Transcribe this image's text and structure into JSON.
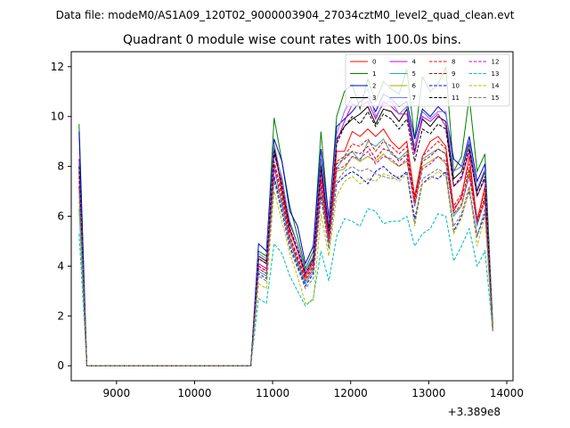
{
  "header": {
    "file_text": "Data file: modeM0/AS1A09_120T02_9000003904_27034cztM0_level2_quad_clean.evt"
  },
  "chart_data": {
    "type": "line",
    "title": "Quadrant 0 module wise count rates with 100.0s bins.",
    "xlabel": "",
    "ylabel": "",
    "x_offset_label": "+3.389e8",
    "xlim": [
      8420,
      14080
    ],
    "ylim": [
      -0.6,
      12.6
    ],
    "xticks": [
      9000,
      10000,
      11000,
      12000,
      13000,
      14000
    ],
    "yticks": [
      0,
      2,
      4,
      6,
      8,
      10,
      12
    ],
    "legend_position": "top-right",
    "grid": false,
    "x": [
      8520,
      8620,
      8720,
      8820,
      8920,
      9020,
      9120,
      9220,
      9320,
      9420,
      9520,
      9620,
      9720,
      9820,
      9920,
      10020,
      10120,
      10220,
      10320,
      10420,
      10520,
      10620,
      10720,
      10820,
      10920,
      11020,
      11120,
      11220,
      11320,
      11420,
      11520,
      11620,
      11720,
      11820,
      11920,
      12020,
      12120,
      12220,
      12320,
      12420,
      12520,
      12620,
      12720,
      12820,
      12920,
      13020,
      13120,
      13220,
      13320,
      13420,
      13520,
      13620,
      13720,
      13820
    ],
    "series": [
      {
        "name": "0",
        "color": "#ff0000",
        "dash": "solid",
        "values": [
          8.3,
          0,
          0,
          0,
          0,
          0,
          0,
          0,
          0,
          0,
          0,
          0,
          0,
          0,
          0,
          0,
          0,
          0,
          0,
          0,
          0,
          0,
          0,
          4.3,
          4.1,
          8.8,
          7.0,
          5.4,
          4.6,
          3.6,
          4.1,
          7.9,
          5.0,
          8.6,
          8.6,
          9.4,
          9.2,
          9.5,
          9.2,
          9.5,
          9.0,
          8.7,
          9.0,
          6.8,
          8.4,
          9.0,
          9.2,
          8.8,
          6.2,
          6.8,
          8.4,
          5.8,
          7.2,
          1.5
        ]
      },
      {
        "name": "1",
        "color": "#008000",
        "dash": "solid",
        "values": [
          9.7,
          0,
          0,
          0,
          0,
          0,
          0,
          0,
          0,
          0,
          0,
          0,
          0,
          0,
          0,
          0,
          0,
          0,
          0,
          0,
          0,
          0,
          0,
          4.6,
          4.4,
          9.95,
          8.2,
          6.4,
          5.2,
          3.9,
          4.6,
          9.4,
          5.8,
          10.0,
          11.0,
          11.3,
          10.3,
          11.5,
          10.6,
          11.4,
          11.1,
          10.9,
          11.9,
          9.1,
          11.6,
          11.0,
          11.3,
          12.0,
          7.8,
          8.4,
          10.8,
          7.8,
          8.5,
          1.7
        ]
      },
      {
        "name": "2",
        "color": "#0000cc",
        "dash": "solid",
        "values": [
          9.4,
          0,
          0,
          0,
          0,
          0,
          0,
          0,
          0,
          0,
          0,
          0,
          0,
          0,
          0,
          0,
          0,
          0,
          0,
          0,
          0,
          0,
          0,
          4.9,
          4.6,
          9.1,
          8.2,
          6.2,
          5.6,
          4.1,
          4.8,
          8.7,
          5.9,
          9.6,
          9.9,
          10.2,
          10.6,
          10.8,
          10.2,
          10.9,
          10.7,
          10.4,
          10.6,
          9.1,
          10.3,
          10.0,
          10.4,
          10.1,
          8.3,
          8.0,
          9.2,
          7.4,
          8.1,
          1.6
        ]
      },
      {
        "name": "3",
        "color": "#000000",
        "dash": "solid",
        "values": [
          8.1,
          0,
          0,
          0,
          0,
          0,
          0,
          0,
          0,
          0,
          0,
          0,
          0,
          0,
          0,
          0,
          0,
          0,
          0,
          0,
          0,
          0,
          0,
          4.4,
          4.2,
          8.7,
          7.5,
          5.7,
          4.9,
          3.8,
          4.3,
          8.1,
          5.5,
          9.1,
          9.6,
          9.9,
          10.1,
          10.4,
          9.7,
          10.3,
          10.2,
          9.8,
          10.3,
          8.6,
          9.9,
          9.6,
          10.0,
          9.8,
          7.5,
          7.8,
          8.9,
          7.0,
          7.8,
          1.5
        ]
      },
      {
        "name": "4",
        "color": "#cc00cc",
        "dash": "solid",
        "values": [
          7.9,
          0,
          0,
          0,
          0,
          0,
          0,
          0,
          0,
          0,
          0,
          0,
          0,
          0,
          0,
          0,
          0,
          0,
          0,
          0,
          0,
          0,
          0,
          4.1,
          3.9,
          8.5,
          7.3,
          5.5,
          4.6,
          3.7,
          4.2,
          7.8,
          5.3,
          9.0,
          9.8,
          10.5,
          10.4,
          10.6,
          9.9,
          10.6,
          10.4,
          10.1,
          10.1,
          8.5,
          10.0,
          9.8,
          10.1,
          9.6,
          7.2,
          7.5,
          8.6,
          6.8,
          7.5,
          1.5
        ]
      },
      {
        "name": "5",
        "color": "#20b2aa",
        "dash": "solid",
        "values": [
          6.3,
          0,
          0,
          0,
          0,
          0,
          0,
          0,
          0,
          0,
          0,
          0,
          0,
          0,
          0,
          0,
          0,
          0,
          0,
          0,
          0,
          0,
          0,
          3.8,
          3.6,
          8.0,
          6.4,
          5.0,
          4.1,
          3.3,
          3.8,
          7.1,
          4.9,
          7.9,
          8.4,
          8.6,
          8.2,
          9.0,
          8.8,
          9.1,
          8.5,
          8.3,
          8.6,
          6.4,
          8.3,
          8.5,
          8.7,
          8.5,
          6.0,
          6.4,
          7.8,
          5.6,
          6.7,
          1.4
        ]
      },
      {
        "name": "6",
        "color": "#aaaa00",
        "dash": "solid",
        "values": [
          7.1,
          0,
          0,
          0,
          0,
          0,
          0,
          0,
          0,
          0,
          0,
          0,
          0,
          0,
          0,
          0,
          0,
          0,
          0,
          0,
          0,
          0,
          0,
          3.9,
          3.7,
          7.5,
          6.6,
          5.1,
          4.2,
          3.4,
          3.9,
          7.0,
          4.9,
          7.8,
          7.9,
          8.4,
          8.2,
          8.4,
          8.2,
          8.5,
          8.2,
          8.0,
          8.2,
          6.5,
          8.0,
          8.2,
          8.4,
          8.1,
          6.1,
          6.4,
          7.7,
          5.8,
          6.6,
          1.4
        ]
      },
      {
        "name": "7",
        "color": "#7777ee",
        "dash": "solid",
        "values": [
          8.2,
          0,
          0,
          0,
          0,
          0,
          0,
          0,
          0,
          0,
          0,
          0,
          0,
          0,
          0,
          0,
          0,
          0,
          0,
          0,
          0,
          0,
          0,
          4.5,
          4.3,
          8.9,
          7.4,
          5.8,
          4.9,
          3.8,
          4.4,
          8.3,
          5.7,
          9.3,
          10.2,
          10.8,
          10.7,
          11.1,
          10.0,
          10.5,
          10.6,
          10.1,
          10.4,
          8.8,
          10.2,
          9.9,
          10.2,
          10.2,
          7.8,
          8.0,
          9.0,
          7.1,
          7.9,
          1.6
        ]
      },
      {
        "name": "8",
        "color": "#ff0000",
        "dash": "dashed",
        "values": [
          7.8,
          0,
          0,
          0,
          0,
          0,
          0,
          0,
          0,
          0,
          0,
          0,
          0,
          0,
          0,
          0,
          0,
          0,
          0,
          0,
          0,
          0,
          0,
          4.0,
          3.8,
          8.2,
          6.9,
          5.2,
          4.4,
          3.5,
          4.0,
          7.5,
          5.1,
          8.2,
          8.4,
          8.9,
          8.8,
          9.1,
          8.6,
          9.0,
          8.8,
          8.5,
          8.8,
          6.7,
          8.4,
          8.7,
          9.0,
          8.7,
          6.4,
          6.9,
          8.1,
          5.9,
          7.0,
          1.5
        ]
      },
      {
        "name": "9",
        "color": "#c00000",
        "dash": "dashed",
        "values": [
          7.6,
          0,
          0,
          0,
          0,
          0,
          0,
          0,
          0,
          0,
          0,
          0,
          0,
          0,
          0,
          0,
          0,
          0,
          0,
          0,
          0,
          0,
          0,
          4.0,
          3.8,
          8.1,
          6.8,
          5.2,
          4.3,
          3.5,
          4.0,
          7.4,
          5.1,
          8.1,
          8.3,
          8.6,
          8.5,
          8.8,
          8.3,
          8.7,
          8.6,
          8.2,
          8.5,
          6.6,
          8.2,
          8.4,
          8.7,
          8.5,
          6.3,
          6.7,
          7.9,
          5.8,
          6.8,
          1.5
        ]
      },
      {
        "name": "10",
        "color": "#0000ee",
        "dash": "dashed",
        "values": [
          7.2,
          0,
          0,
          0,
          0,
          0,
          0,
          0,
          0,
          0,
          0,
          0,
          0,
          0,
          0,
          0,
          0,
          0,
          0,
          0,
          0,
          0,
          0,
          3.7,
          3.5,
          7.6,
          6.2,
          4.8,
          4.0,
          3.2,
          3.7,
          6.8,
          4.7,
          7.3,
          7.6,
          7.8,
          7.6,
          7.3,
          7.8,
          8.0,
          7.7,
          7.5,
          7.8,
          5.9,
          7.3,
          7.6,
          7.5,
          7.8,
          5.4,
          6.0,
          7.0,
          5.2,
          6.1,
          1.4
        ]
      },
      {
        "name": "11",
        "color": "#000000",
        "dash": "dashed",
        "values": [
          8.0,
          0,
          0,
          0,
          0,
          0,
          0,
          0,
          0,
          0,
          0,
          0,
          0,
          0,
          0,
          0,
          0,
          0,
          0,
          0,
          0,
          0,
          0,
          4.3,
          4.1,
          8.6,
          7.2,
          5.5,
          4.7,
          3.7,
          4.2,
          8.0,
          5.4,
          8.9,
          9.6,
          10.0,
          9.7,
          10.2,
          9.6,
          10.1,
          9.9,
          9.5,
          9.9,
          8.2,
          9.5,
          9.3,
          9.7,
          9.5,
          7.2,
          7.6,
          8.7,
          6.8,
          7.6,
          1.5
        ]
      },
      {
        "name": "12",
        "color": "#cc00cc",
        "dash": "dashed",
        "values": [
          7.4,
          0,
          0,
          0,
          0,
          0,
          0,
          0,
          0,
          0,
          0,
          0,
          0,
          0,
          0,
          0,
          0,
          0,
          0,
          0,
          0,
          0,
          0,
          3.9,
          3.7,
          7.9,
          6.6,
          5.0,
          4.2,
          3.4,
          3.9,
          7.2,
          5.0,
          7.9,
          8.0,
          8.4,
          8.3,
          8.6,
          8.1,
          8.4,
          8.3,
          8.0,
          8.3,
          6.4,
          7.9,
          8.1,
          8.4,
          8.2,
          6.1,
          6.5,
          7.6,
          5.7,
          6.6,
          1.4
        ]
      },
      {
        "name": "13",
        "color": "#00bbbb",
        "dash": "dashed",
        "values": [
          5.3,
          0,
          0,
          0,
          0,
          0,
          0,
          0,
          0,
          0,
          0,
          0,
          0,
          0,
          0,
          0,
          0,
          0,
          0,
          0,
          0,
          0,
          0,
          2.7,
          2.5,
          4.9,
          4.5,
          3.6,
          3.0,
          2.4,
          2.7,
          4.6,
          3.4,
          5.2,
          5.9,
          5.8,
          5.6,
          6.3,
          6.2,
          5.7,
          5.8,
          5.8,
          6.0,
          4.8,
          5.3,
          5.5,
          6.1,
          6.0,
          4.2,
          4.8,
          5.5,
          4.0,
          4.6,
          1.4
        ]
      },
      {
        "name": "14",
        "color": "#bbbb00",
        "dash": "dashed",
        "values": [
          6.6,
          0,
          0,
          0,
          0,
          0,
          0,
          0,
          0,
          0,
          0,
          0,
          0,
          0,
          0,
          0,
          0,
          0,
          0,
          0,
          0,
          0,
          0,
          3.3,
          3.1,
          7.0,
          5.8,
          4.5,
          3.6,
          2.5,
          2.6,
          6.1,
          4.4,
          6.8,
          7.4,
          7.6,
          7.3,
          7.5,
          7.4,
          7.7,
          7.6,
          7.4,
          7.7,
          5.6,
          7.3,
          7.5,
          7.8,
          7.6,
          5.3,
          5.9,
          7.1,
          4.8,
          6.0,
          1.4
        ]
      },
      {
        "name": "15",
        "color": "#777777",
        "dash": "dashed",
        "values": [
          7.0,
          0,
          0,
          0,
          0,
          0,
          0,
          0,
          0,
          0,
          0,
          0,
          0,
          0,
          0,
          0,
          0,
          0,
          0,
          0,
          0,
          0,
          0,
          3.6,
          3.4,
          7.4,
          6.1,
          4.7,
          3.9,
          3.1,
          3.5,
          6.7,
          4.7,
          7.4,
          7.8,
          8.0,
          7.8,
          7.9,
          7.7,
          7.6,
          7.5,
          7.6,
          7.7,
          5.7,
          7.5,
          7.7,
          7.9,
          7.7,
          5.6,
          6.1,
          7.2,
          5.2,
          6.3,
          1.4
        ]
      }
    ]
  }
}
